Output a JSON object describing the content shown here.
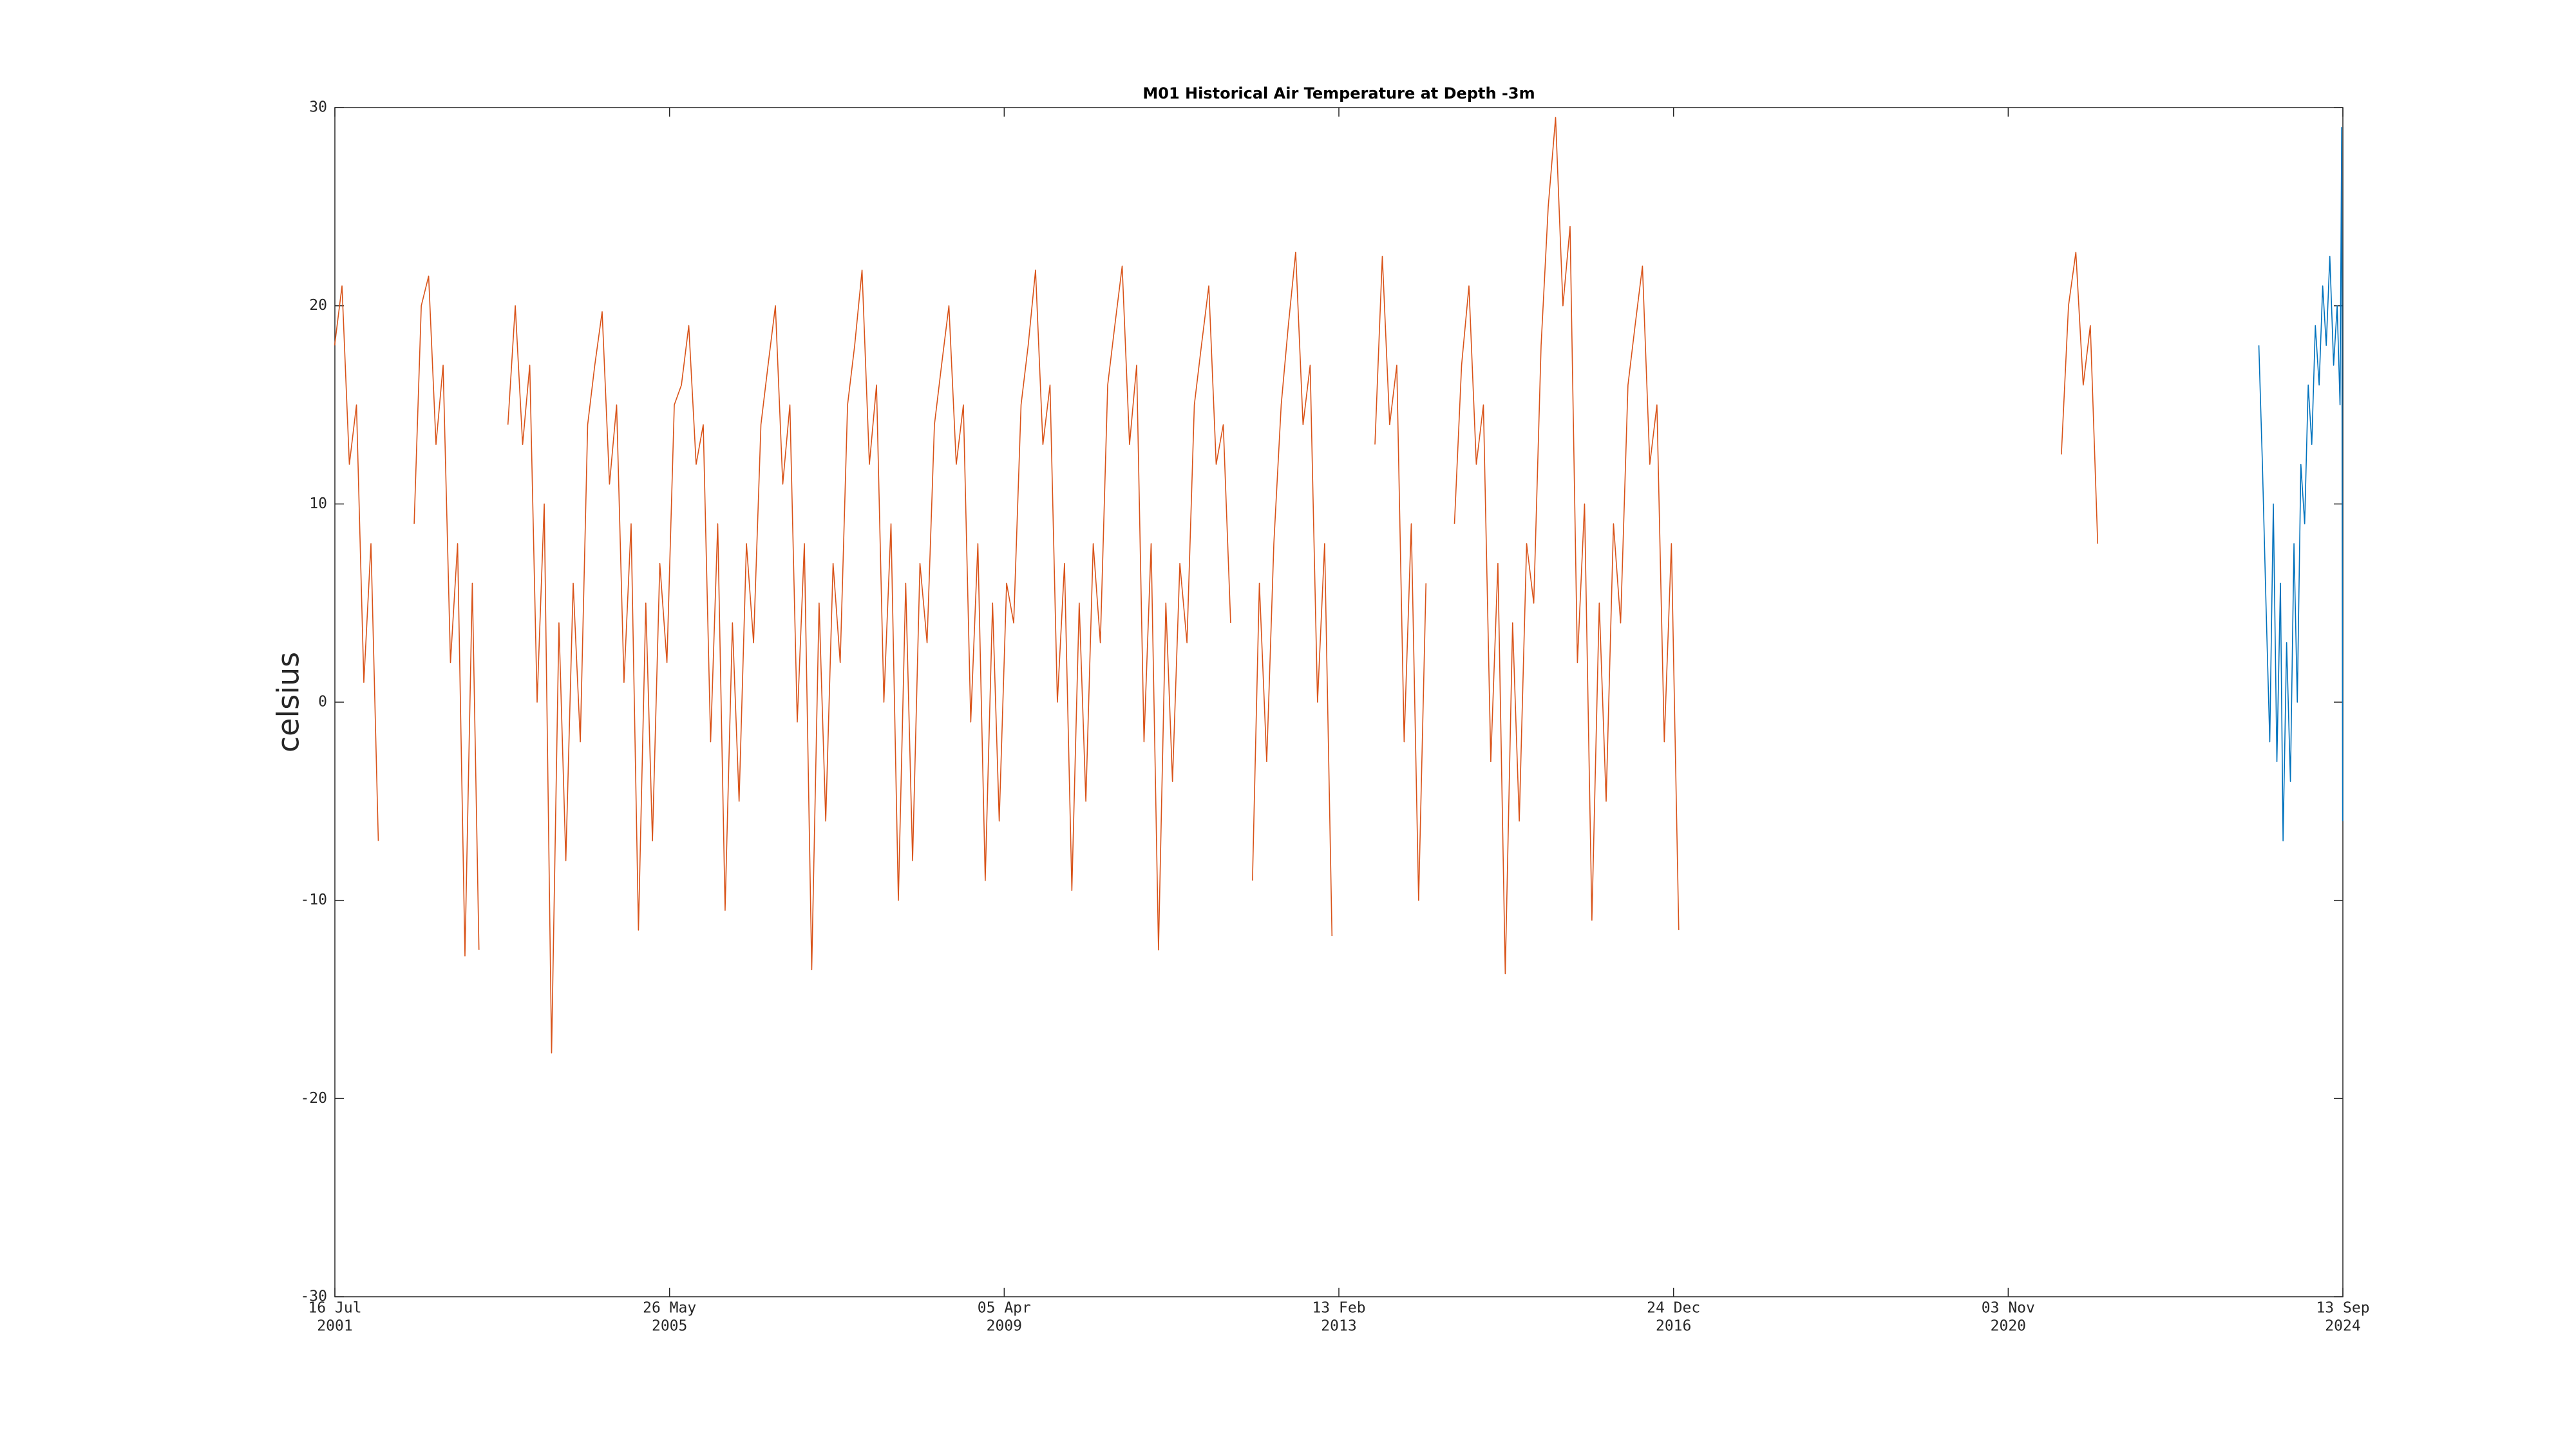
{
  "chart_data": {
    "type": "line",
    "title": "M01 Historical Air Temperature at Depth -3m",
    "ylabel": "celsius",
    "xlim": [
      "2001-07-16",
      "2024-09-13"
    ],
    "xticks": [
      {
        "value": "2001-07-16",
        "label": [
          "16 Jul",
          "2001"
        ]
      },
      {
        "value": "2005-05-26",
        "label": [
          "26 May",
          "2005"
        ]
      },
      {
        "value": "2009-04-05",
        "label": [
          "05 Apr",
          "2009"
        ]
      },
      {
        "value": "2013-02-13",
        "label": [
          "13 Feb",
          "2013"
        ]
      },
      {
        "value": "2016-12-24",
        "label": [
          "24 Dec",
          "2016"
        ]
      },
      {
        "value": "2020-11-03",
        "label": [
          "03 Nov",
          "2020"
        ]
      },
      {
        "value": "2024-09-13",
        "label": [
          "13 Sep",
          "2024"
        ]
      }
    ],
    "ylim": [
      -30,
      30
    ],
    "yticks": [
      -30,
      -20,
      -10,
      0,
      10,
      20,
      30
    ],
    "series": [
      {
        "color": "#d95319",
        "x": [
          "2001-07-15",
          "2001-08-15",
          "2001-09-15",
          "2001-10-15",
          "2001-11-15",
          "2001-12-15",
          "2002-01-15",
          "2002-02-15",
          "2002-06-15",
          "2002-07-15",
          "2002-08-15",
          "2002-09-15",
          "2002-10-15",
          "2002-11-15",
          "2002-12-15",
          "2003-01-15",
          "2003-02-15",
          "2003-03-15",
          "2003-04-15",
          "2003-07-15",
          "2003-08-15",
          "2003-09-15",
          "2003-10-15",
          "2003-11-15",
          "2003-12-15",
          "2004-01-15",
          "2004-02-15",
          "2004-03-15",
          "2004-04-15",
          "2004-05-15",
          "2004-06-15",
          "2004-07-15",
          "2004-08-15",
          "2004-09-15",
          "2004-10-15",
          "2004-11-15",
          "2004-12-15",
          "2005-01-15",
          "2005-02-15",
          "2005-03-15",
          "2005-04-15",
          "2005-05-15",
          "2005-06-15",
          "2005-07-15",
          "2005-08-15",
          "2005-09-15",
          "2005-10-15",
          "2005-11-15",
          "2005-12-15",
          "2006-01-15",
          "2006-02-15",
          "2006-03-15",
          "2006-04-15",
          "2006-05-15",
          "2006-06-15",
          "2006-07-15",
          "2006-08-15",
          "2006-09-15",
          "2006-10-15",
          "2006-11-15",
          "2006-12-15",
          "2007-01-15",
          "2007-02-15",
          "2007-03-15",
          "2007-04-15",
          "2007-05-15",
          "2007-06-15",
          "2007-07-15",
          "2007-08-15",
          "2007-09-15",
          "2007-10-15",
          "2007-11-15",
          "2007-12-15",
          "2008-01-15",
          "2008-02-15",
          "2008-03-15",
          "2008-04-15",
          "2008-05-15",
          "2008-06-15",
          "2008-07-15",
          "2008-08-15",
          "2008-09-15",
          "2008-10-15",
          "2008-11-15",
          "2008-12-15",
          "2009-01-15",
          "2009-02-15",
          "2009-03-15",
          "2009-04-15",
          "2009-05-15",
          "2009-06-15",
          "2009-07-15",
          "2009-08-15",
          "2009-09-15",
          "2009-10-15",
          "2009-11-15",
          "2009-12-15",
          "2010-01-15",
          "2010-02-15",
          "2010-03-15",
          "2010-04-15",
          "2010-05-15",
          "2010-06-15",
          "2010-07-15",
          "2010-08-15",
          "2010-09-15",
          "2010-10-15",
          "2010-11-15",
          "2010-12-15",
          "2011-01-15",
          "2011-02-15",
          "2011-03-15",
          "2011-04-15",
          "2011-05-15",
          "2011-06-15",
          "2011-07-15",
          "2011-08-15",
          "2011-09-15",
          "2011-10-15",
          "2011-11-15",
          "2011-12-15",
          "2012-02-15",
          "2012-03-15",
          "2012-04-15",
          "2012-05-15",
          "2012-06-15",
          "2012-07-15",
          "2012-08-15",
          "2012-09-15",
          "2012-10-15",
          "2012-11-15",
          "2012-12-15",
          "2013-01-15",
          "2013-02-15",
          "2013-07-15",
          "2013-08-15",
          "2013-09-15",
          "2013-10-15",
          "2013-11-15",
          "2013-12-15",
          "2014-01-15",
          "2014-02-15",
          "2014-03-15",
          "2014-06-15",
          "2014-07-15",
          "2014-08-15",
          "2014-09-15",
          "2014-10-15",
          "2014-11-15",
          "2014-12-15",
          "2015-01-15",
          "2015-02-15",
          "2015-03-15",
          "2015-04-15",
          "2015-05-15",
          "2015-06-15",
          "2015-07-15",
          "2015-08-15",
          "2015-09-15",
          "2015-10-15",
          "2015-11-15",
          "2015-12-15",
          "2016-01-15",
          "2016-02-15",
          "2016-03-15",
          "2016-04-15",
          "2016-05-15",
          "2016-06-15",
          "2016-07-15",
          "2016-08-15",
          "2016-09-15",
          "2016-10-15",
          "2016-11-15",
          "2016-12-15",
          "2017-01-15",
          "2017-02-15",
          "2021-06-15",
          "2021-07-15",
          "2021-08-15",
          "2021-09-15",
          "2021-10-15",
          "2021-11-15"
        ],
        "values": [
          18,
          21,
          12,
          15,
          1,
          8,
          -7,
          null,
          9,
          20,
          21.5,
          13,
          17,
          2,
          8,
          -12.8,
          6,
          -12.5,
          null,
          14,
          20,
          13,
          17,
          0,
          10,
          -17.7,
          4,
          -8,
          6,
          -2,
          14,
          17,
          19.7,
          11,
          15,
          1,
          9,
          -11.5,
          5,
          -7,
          7,
          2,
          15,
          16,
          19,
          12,
          14,
          -2,
          9,
          -10.5,
          4,
          -5,
          8,
          3,
          14,
          17,
          20,
          11,
          15,
          -1,
          8,
          -13.5,
          5,
          -6,
          7,
          2,
          15,
          18,
          21.8,
          12,
          16,
          0,
          9,
          -10,
          6,
          -8,
          7,
          3,
          14,
          17,
          20,
          12,
          15,
          -1,
          8,
          -9,
          5,
          -6,
          6,
          4,
          15,
          18,
          21.8,
          13,
          16,
          0,
          7,
          -9.5,
          5,
          -5,
          8,
          3,
          16,
          19,
          22,
          13,
          17,
          -2,
          8,
          -12.5,
          5,
          -4,
          7,
          3,
          15,
          18,
          21,
          12,
          14,
          4,
          null,
          -9,
          6,
          -3,
          8,
          15,
          19,
          22.7,
          14,
          17,
          0,
          8,
          -11.8,
          null,
          13,
          22.5,
          14,
          17,
          -2,
          9,
          -10,
          6,
          null,
          9,
          17,
          21,
          12,
          15,
          -3,
          7,
          -13.7,
          4,
          -6,
          8,
          5,
          18,
          25,
          29.5,
          20,
          24,
          2,
          10,
          -11,
          5,
          -5,
          9,
          4,
          16,
          19,
          22,
          12,
          15,
          -2,
          8,
          -11.5,
          null,
          12.5,
          20,
          22.7,
          16,
          19,
          8
        ]
      },
      {
        "color": "#0072bd",
        "x": [
          "2023-09-25",
          "2023-10-10",
          "2023-10-25",
          "2023-11-10",
          "2023-11-25",
          "2023-12-10",
          "2023-12-25",
          "2024-01-05",
          "2024-01-20",
          "2024-02-05",
          "2024-02-20",
          "2024-03-05",
          "2024-03-20",
          "2024-04-05",
          "2024-04-20",
          "2024-05-05",
          "2024-05-20",
          "2024-06-05",
          "2024-06-20",
          "2024-07-05",
          "2024-07-20",
          "2024-08-05",
          "2024-08-20",
          "2024-09-01",
          "2024-09-08",
          "2024-09-12"
        ],
        "values": [
          18,
          12,
          5,
          -2,
          10,
          -3,
          6,
          -7,
          3,
          -4,
          8,
          0,
          12,
          9,
          16,
          13,
          19,
          16,
          21,
          18,
          22.5,
          17,
          20,
          15,
          29,
          -6
        ]
      }
    ]
  }
}
